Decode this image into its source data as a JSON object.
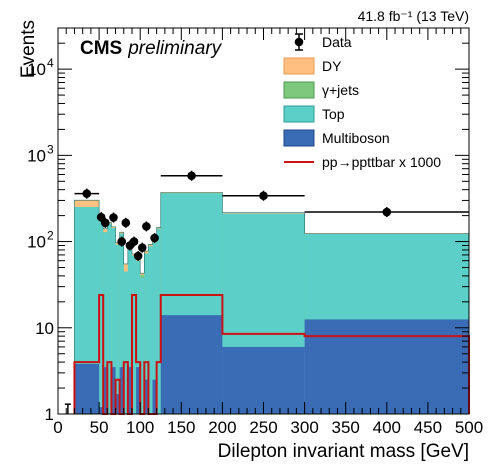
{
  "chart_data": {
    "type": "histogram",
    "title": "",
    "lumi_label": "41.8 fb⁻¹ (13 TeV)",
    "experiment": "CMS",
    "status": "preliminary",
    "xlabel": "Dilepton invariant mass [GeV]",
    "ylabel": "Events",
    "xlim": [
      0,
      500
    ],
    "ylim": [
      1,
      30000
    ],
    "yscale": "log",
    "grid": false,
    "legend_position": "top-right",
    "x_ticks": [
      0,
      50,
      100,
      150,
      200,
      250,
      300,
      350,
      400,
      450,
      500
    ],
    "y_ticks": [
      {
        "value": 1,
        "label": "1"
      },
      {
        "value": 10,
        "label": "10"
      },
      {
        "value": 100,
        "label": "10",
        "exp": "2"
      },
      {
        "value": 1000,
        "label": "10",
        "exp": "3"
      },
      {
        "value": 10000,
        "label": "10",
        "exp": "4"
      }
    ],
    "bin_edges": [
      20,
      50,
      55,
      60,
      65,
      70,
      75,
      80,
      85,
      90,
      95,
      100,
      105,
      110,
      115,
      120,
      125,
      200,
      300,
      500
    ],
    "stack": [
      {
        "name": "Multiboson",
        "color": "#3a6bb5",
        "values": [
          3.8,
          1.2,
          3.5,
          1.0,
          3.5,
          1.7,
          3.5,
          1.0,
          3.5,
          1.0,
          3.5,
          1.0,
          2.5,
          1.0,
          2.5,
          1.0,
          14,
          6,
          12.5
        ]
      },
      {
        "name": "Top",
        "color": "#5bcfc8",
        "values": [
          248,
          180,
          125,
          160,
          140,
          90,
          120,
          44,
          80,
          68,
          56,
          37,
          70,
          87,
          95,
          140,
          350,
          205,
          110
        ]
      },
      {
        "name": "γ+jets",
        "color": "#7ec87e",
        "values": [
          0,
          0,
          0,
          0,
          0,
          0,
          0,
          0,
          0,
          0,
          0,
          3,
          0,
          0,
          0,
          0,
          0,
          0,
          0
        ]
      },
      {
        "name": "DY",
        "color": "#ffbf80",
        "values": [
          50,
          5,
          12,
          5,
          5,
          5,
          5,
          10,
          10,
          3,
          5,
          2,
          5,
          5,
          5,
          5,
          8,
          5,
          2
        ]
      }
    ],
    "data": {
      "name": "Data",
      "points": [
        {
          "x": 35,
          "y": 360,
          "xerr": 15
        },
        {
          "x": 52.5,
          "y": 192,
          "xerr": 2.5
        },
        {
          "x": 57.5,
          "y": 165,
          "xerr": 2.5
        },
        {
          "x": 67.5,
          "y": 190,
          "xerr": 2.5
        },
        {
          "x": 82.5,
          "y": 165,
          "xerr": 2.5
        },
        {
          "x": 77.5,
          "y": 100,
          "xerr": 2.5
        },
        {
          "x": 87.5,
          "y": 90,
          "xerr": 2.5
        },
        {
          "x": 92.5,
          "y": 100,
          "xerr": 2.5
        },
        {
          "x": 97.5,
          "y": 68,
          "xerr": 2.5
        },
        {
          "x": 102.5,
          "y": 85,
          "xerr": 2.5
        },
        {
          "x": 107.5,
          "y": 150,
          "xerr": 2.5
        },
        {
          "x": 117.5,
          "y": 110,
          "xerr": 2.5
        },
        {
          "x": 162.5,
          "y": 580,
          "xerr": 37.5
        },
        {
          "x": 250,
          "y": 340,
          "xerr": 50
        },
        {
          "x": 400,
          "y": 220,
          "xerr": 100
        }
      ],
      "low_bin_x": 12,
      "low_bin_y": 1.3
    },
    "signal": {
      "name": "pp→ppttbar x 1000",
      "color": "#cc1111",
      "values": [
        4.0,
        24,
        1.0,
        4.0,
        1.0,
        2.5,
        1.0,
        4.0,
        1.0,
        24,
        4.0,
        1.0,
        4.0,
        1.0,
        1.0,
        4.0,
        24,
        8.5,
        8.0
      ]
    },
    "legend": [
      {
        "label": "Data",
        "kind": "marker"
      },
      {
        "label": "DY",
        "kind": "fill",
        "color": "#ffbf80",
        "border": "#e89a55"
      },
      {
        "label": "γ+jets",
        "kind": "fill",
        "color": "#7ec87e",
        "border": "#4d9a4d"
      },
      {
        "label": "Top",
        "kind": "fill",
        "color": "#5bcfc8",
        "border": "#2f9d96"
      },
      {
        "label": "Multiboson",
        "kind": "fill",
        "color": "#3a6bb5",
        "border": "#1e4a8a"
      },
      {
        "label": "pp→ppttbar x 1000",
        "kind": "line",
        "color": "#cc1111"
      }
    ]
  }
}
